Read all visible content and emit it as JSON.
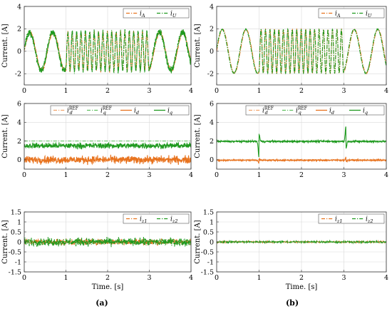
{
  "colors": {
    "orange": "#e8731e",
    "green": "#1f9a1f",
    "refOrange": "#f2a46b",
    "refGreen": "#5fbf5f"
  },
  "captions": {
    "a": "(a)",
    "b": "(b)"
  },
  "chart_data": [
    {
      "id": "a1",
      "type": "line",
      "column": "a",
      "xlabel": "",
      "ylabel": "Current. [A]",
      "xlim": [
        0,
        4
      ],
      "ylim": [
        -3,
        4
      ],
      "xticks": [
        0,
        1,
        2,
        3,
        4
      ],
      "yticks": [
        -2,
        0,
        2,
        4
      ],
      "grid": true,
      "legend": "top-right",
      "series": [
        {
          "name": "i_A",
          "sub": "A",
          "style": "dashdot",
          "color": "orange",
          "model": {
            "kind": "chirp",
            "amp": 1.7,
            "noise": 0.25,
            "f_low": 1.8,
            "f_high": 9.5
          }
        },
        {
          "name": "i_U",
          "sub": "U",
          "style": "dashdot",
          "color": "green",
          "model": {
            "kind": "chirp",
            "amp": 1.7,
            "noise": 0.45,
            "f_low": 1.8,
            "f_high": 9.5
          }
        }
      ]
    },
    {
      "id": "b1",
      "type": "line",
      "column": "b",
      "xlabel": "",
      "ylabel": "Current. [A]",
      "xlim": [
        0,
        4
      ],
      "ylim": [
        -3,
        4
      ],
      "xticks": [
        0,
        1,
        2,
        3,
        4
      ],
      "yticks": [
        -2,
        0,
        2,
        4
      ],
      "grid": true,
      "legend": "top-right",
      "series": [
        {
          "name": "i_A",
          "sub": "A",
          "style": "dashdot",
          "color": "orange",
          "model": {
            "kind": "chirp",
            "amp": 1.95,
            "noise": 0.03,
            "f_low": 1.8,
            "f_high": 9.5
          }
        },
        {
          "name": "i_U",
          "sub": "U",
          "style": "dashdot",
          "color": "green",
          "model": {
            "kind": "chirp",
            "amp": 1.95,
            "noise": 0.05,
            "f_low": 1.8,
            "f_high": 9.5
          }
        }
      ]
    },
    {
      "id": "a2",
      "type": "line",
      "column": "a",
      "xlabel": "",
      "ylabel": "Current. [A]",
      "xlim": [
        0,
        4
      ],
      "ylim": [
        -1,
        6
      ],
      "xticks": [
        0,
        1,
        2,
        3,
        4
      ],
      "yticks": [
        0,
        2,
        4,
        6
      ],
      "grid": true,
      "legend": "top",
      "series": [
        {
          "name": "i_d^REF",
          "sub": "d",
          "sup": "REF",
          "style": "dashdot",
          "color": "refOrange",
          "model": {
            "kind": "const",
            "value": 0
          }
        },
        {
          "name": "i_q^REF",
          "sub": "q",
          "sup": "REF",
          "style": "dashdot",
          "color": "refGreen",
          "model": {
            "kind": "const",
            "value": 2
          }
        },
        {
          "name": "i_d",
          "sub": "d",
          "style": "solid",
          "color": "orange",
          "model": {
            "kind": "noise",
            "value": 0,
            "noise": 0.6
          }
        },
        {
          "name": "i_q",
          "sub": "q",
          "style": "solid",
          "color": "green",
          "model": {
            "kind": "noise",
            "value": 1.5,
            "noise": 0.45
          }
        }
      ]
    },
    {
      "id": "b2",
      "type": "line",
      "column": "b",
      "xlabel": "",
      "ylabel": "Current. [A]",
      "xlim": [
        0,
        4
      ],
      "ylim": [
        -1,
        6
      ],
      "xticks": [
        0,
        1,
        2,
        3,
        4
      ],
      "yticks": [
        0,
        2,
        4,
        6
      ],
      "grid": true,
      "legend": "top",
      "series": [
        {
          "name": "i_d^REF",
          "sub": "d",
          "sup": "REF",
          "style": "dashdot",
          "color": "refOrange",
          "model": {
            "kind": "const",
            "value": 0
          }
        },
        {
          "name": "i_q^REF",
          "sub": "q",
          "sup": "REF",
          "style": "dashdot",
          "color": "refGreen",
          "model": {
            "kind": "const",
            "value": 2
          }
        },
        {
          "name": "i_d",
          "sub": "d",
          "style": "solid",
          "color": "orange",
          "model": {
            "kind": "noise",
            "value": -0.05,
            "noise": 0.12,
            "spikes": [
              [
                1.0,
                -0.35
              ],
              [
                3.05,
                0.3
              ]
            ]
          }
        },
        {
          "name": "i_q",
          "sub": "q",
          "style": "solid",
          "color": "green",
          "model": {
            "kind": "noise",
            "value": 1.95,
            "noise": 0.15,
            "spikes": [
              [
                1.0,
                -1.8
              ],
              [
                3.05,
                1.7
              ]
            ]
          }
        }
      ]
    },
    {
      "id": "a3",
      "type": "line",
      "column": "a",
      "xlabel": "Time. [s]",
      "ylabel": "Current. [A]",
      "xlim": [
        0,
        4
      ],
      "ylim": [
        -1.5,
        1.5
      ],
      "xticks": [
        0,
        1,
        2,
        3,
        4
      ],
      "yticks": [
        -1.5,
        -1,
        -0.5,
        0,
        0.5,
        1,
        1.5
      ],
      "grid": true,
      "legend": "top-right",
      "series": [
        {
          "name": "i_z1",
          "sub": "z1",
          "style": "dashdot",
          "color": "orange",
          "model": {
            "kind": "noise",
            "value": 0,
            "noise": 0.22
          }
        },
        {
          "name": "i_z2",
          "sub": "z2",
          "style": "dashdot",
          "color": "green",
          "model": {
            "kind": "noise",
            "value": 0,
            "noise": 0.28
          }
        }
      ]
    },
    {
      "id": "b3",
      "type": "line",
      "column": "b",
      "xlabel": "Time. [s]",
      "ylabel": "Current. [A]",
      "xlim": [
        0,
        4
      ],
      "ylim": [
        -1.5,
        1.5
      ],
      "xticks": [
        0,
        1,
        2,
        3,
        4
      ],
      "yticks": [
        -1.5,
        -1,
        -0.5,
        0,
        0.5,
        1,
        1.5
      ],
      "grid": true,
      "legend": "top-right",
      "series": [
        {
          "name": "i_z1",
          "sub": "z1",
          "style": "dashdot",
          "color": "orange",
          "model": {
            "kind": "noise",
            "value": 0,
            "noise": 0.05
          }
        },
        {
          "name": "i_z2",
          "sub": "z2",
          "style": "dashdot",
          "color": "green",
          "model": {
            "kind": "noise",
            "value": 0,
            "noise": 0.07
          }
        }
      ]
    }
  ]
}
